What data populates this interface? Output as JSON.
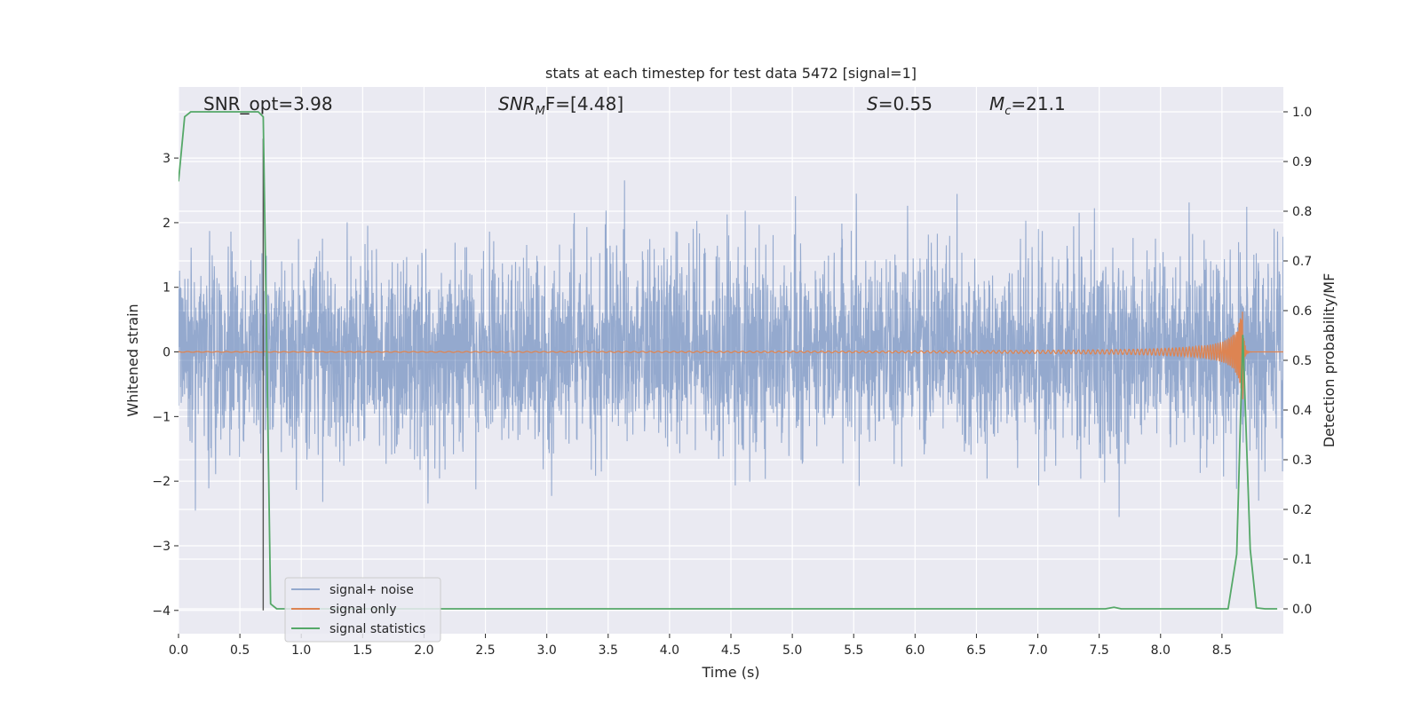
{
  "chart_data": {
    "type": "line",
    "title": "stats at each timestep for test data 5472 [signal=1]",
    "xlabel": "Time (s)",
    "ylabel": "Whitened strain",
    "ylabel_right": "Detection probability/MF",
    "xlim": [
      0.0,
      9.0
    ],
    "ylim": [
      -4.36,
      4.1
    ],
    "ylim_right": [
      -0.05,
      1.05
    ],
    "x_ticks": [
      "0.0",
      "0.5",
      "1.0",
      "1.5",
      "2.0",
      "2.5",
      "3.0",
      "3.5",
      "4.0",
      "4.5",
      "5.0",
      "5.5",
      "6.0",
      "6.5",
      "7.0",
      "7.5",
      "8.0",
      "8.5"
    ],
    "x_tick_values": [
      0.0,
      0.5,
      1.0,
      1.5,
      2.0,
      2.5,
      3.0,
      3.5,
      4.0,
      4.5,
      5.0,
      5.5,
      6.0,
      6.5,
      7.0,
      7.5,
      8.0,
      8.5
    ],
    "y_ticks": [
      "−4",
      "−3",
      "−2",
      "−1",
      "0",
      "1",
      "2",
      "3"
    ],
    "y_tick_values": [
      -4,
      -3,
      -2,
      -1,
      0,
      1,
      2,
      3
    ],
    "y_ticks_right": [
      "0.0",
      "0.1",
      "0.2",
      "0.3",
      "0.4",
      "0.5",
      "0.6",
      "0.7",
      "0.8",
      "0.9",
      "1.0"
    ],
    "y_tick_values_right": [
      0.0,
      0.1,
      0.2,
      0.3,
      0.4,
      0.5,
      0.6,
      0.7,
      0.8,
      0.9,
      1.0
    ],
    "grid": true,
    "legend_position": "lower-left",
    "annotations": [
      {
        "text": "SNR_opt=3.98",
        "x": 0.2
      },
      {
        "text_main": "SNR",
        "text_sub": "M",
        "text_rest": "F=[4.48]",
        "x": 2.6
      },
      {
        "text_main": "S",
        "text_sub": "",
        "text_rest": "=0.55",
        "x": 5.6
      },
      {
        "text_main": "M",
        "text_sub": "c",
        "text_rest": "=21.1",
        "x": 6.6
      }
    ],
    "vertical_line": {
      "x": 0.69,
      "y_from": -4.0,
      "y_to": 3.3
    },
    "series": [
      {
        "name": "signal+ noise",
        "axis": "left",
        "color": "#4c72b0",
        "style": "band",
        "noise_std": 0.75,
        "noise_clip": [
          -4.0,
          3.4
        ]
      },
      {
        "name": "signal only",
        "axis": "left",
        "color": "#dd8452",
        "style": "chirp",
        "merger_time": 8.67,
        "peak_amplitude": 0.75
      },
      {
        "name": "signal statistics",
        "axis": "right",
        "color": "#55a868",
        "points": [
          [
            0.0,
            0.86
          ],
          [
            0.05,
            0.99
          ],
          [
            0.1,
            1.0
          ],
          [
            0.2,
            1.0
          ],
          [
            0.3,
            1.0
          ],
          [
            0.4,
            1.0
          ],
          [
            0.5,
            1.0
          ],
          [
            0.6,
            1.0
          ],
          [
            0.65,
            1.0
          ],
          [
            0.69,
            0.99
          ],
          [
            0.75,
            0.01
          ],
          [
            0.8,
            0.0
          ],
          [
            1.0,
            0.0
          ],
          [
            2.0,
            0.0
          ],
          [
            3.0,
            0.0
          ],
          [
            4.0,
            0.0
          ],
          [
            5.0,
            0.0
          ],
          [
            6.0,
            0.0
          ],
          [
            7.0,
            0.0
          ],
          [
            7.55,
            0.0
          ],
          [
            7.62,
            0.003
          ],
          [
            7.68,
            0.0
          ],
          [
            8.0,
            0.0
          ],
          [
            8.55,
            0.0
          ],
          [
            8.62,
            0.11
          ],
          [
            8.67,
            0.55
          ],
          [
            8.73,
            0.12
          ],
          [
            8.78,
            0.002
          ],
          [
            8.85,
            0.0
          ],
          [
            8.95,
            0.0
          ]
        ]
      }
    ]
  }
}
